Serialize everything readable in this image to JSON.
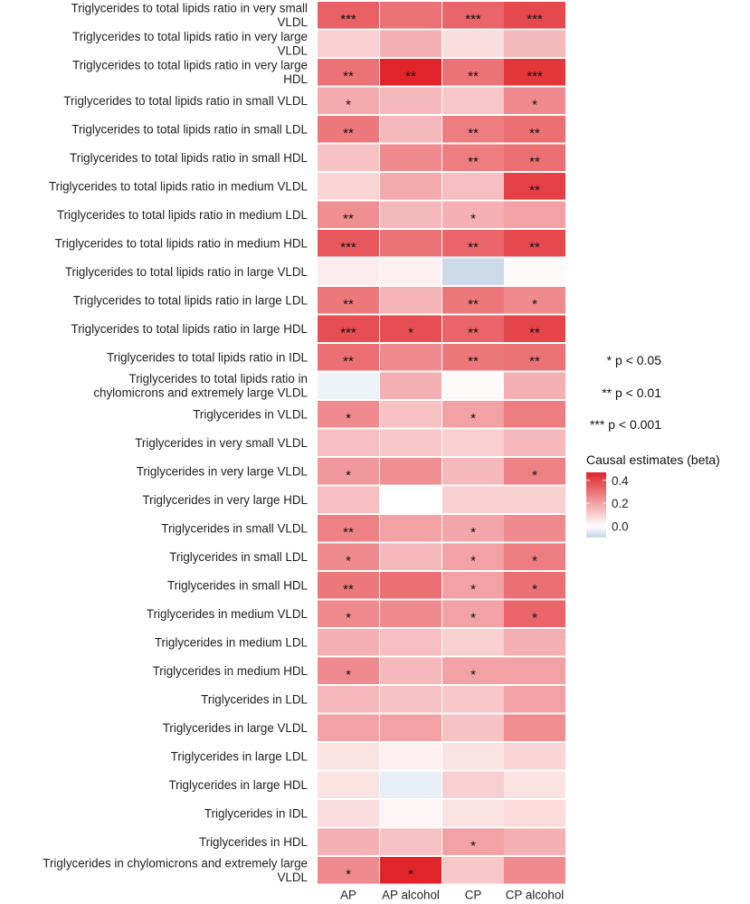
{
  "chart_data": {
    "type": "heatmap",
    "columns": [
      "AP",
      "AP alcohol",
      "CP",
      "CP alcohol"
    ],
    "rows": [
      {
        "label": [
          "Triglycerides to total lipids ratio in very small",
          "VLDL"
        ],
        "values": [
          0.34,
          0.3,
          0.33,
          0.39
        ],
        "stars": [
          "***",
          "",
          "***",
          "***"
        ]
      },
      {
        "label": [
          "Triglycerides to total lipids ratio in very large",
          "VLDL"
        ],
        "values": [
          0.1,
          0.17,
          0.07,
          0.15
        ],
        "stars": [
          "",
          "",
          "",
          ""
        ]
      },
      {
        "label": [
          "Triglycerides to total lipids ratio in very large",
          "HDL"
        ],
        "values": [
          0.3,
          0.47,
          0.3,
          0.43
        ],
        "stars": [
          "**",
          "**",
          "**",
          "***"
        ]
      },
      {
        "label": [
          "Triglycerides to total lipids ratio in small VLDL"
        ],
        "values": [
          0.18,
          0.15,
          0.12,
          0.25
        ],
        "stars": [
          "*",
          "",
          "",
          "*"
        ]
      },
      {
        "label": [
          "Triglycerides to total lipids ratio in small LDL"
        ],
        "values": [
          0.29,
          0.15,
          0.28,
          0.31
        ],
        "stars": [
          "**",
          "",
          "**",
          "**"
        ]
      },
      {
        "label": [
          "Triglycerides to total lipids ratio in small HDL"
        ],
        "values": [
          0.13,
          0.25,
          0.28,
          0.31
        ],
        "stars": [
          "",
          "",
          "**",
          "**"
        ]
      },
      {
        "label": [
          "Triglycerides to total lipids ratio in medium VLDL"
        ],
        "values": [
          0.09,
          0.18,
          0.14,
          0.41
        ],
        "stars": [
          "",
          "",
          "",
          "**"
        ]
      },
      {
        "label": [
          "Triglycerides to total lipids ratio in medium LDL"
        ],
        "values": [
          0.24,
          0.15,
          0.17,
          0.2
        ],
        "stars": [
          "**",
          "",
          "*",
          ""
        ]
      },
      {
        "label": [
          "Triglycerides to total lipids ratio in medium HDL"
        ],
        "values": [
          0.36,
          0.3,
          0.33,
          0.39
        ],
        "stars": [
          "***",
          "",
          "**",
          "**"
        ]
      },
      {
        "label": [
          "Triglycerides to total lipids ratio in large VLDL"
        ],
        "values": [
          0.04,
          0.03,
          -0.09,
          0.01
        ],
        "stars": [
          "",
          "",
          "",
          ""
        ]
      },
      {
        "label": [
          "Triglycerides to total lipids ratio in large LDL"
        ],
        "values": [
          0.29,
          0.16,
          0.29,
          0.25
        ],
        "stars": [
          "**",
          "",
          "**",
          "*"
        ]
      },
      {
        "label": [
          "Triglycerides to total lipids ratio in large HDL"
        ],
        "values": [
          0.38,
          0.38,
          0.33,
          0.4
        ],
        "stars": [
          "***",
          "*",
          "**",
          "**"
        ]
      },
      {
        "label": [
          "Triglycerides to total lipids ratio in IDL"
        ],
        "values": [
          0.31,
          0.25,
          0.29,
          0.3
        ],
        "stars": [
          "**",
          "",
          "**",
          "**"
        ]
      },
      {
        "label": [
          "Triglycerides to total lipids ratio in",
          "chylomicrons and extremely large VLDL"
        ],
        "values": [
          -0.03,
          0.17,
          0.01,
          0.17
        ],
        "stars": [
          "",
          "",
          "",
          ""
        ]
      },
      {
        "label": [
          "Triglycerides in VLDL"
        ],
        "values": [
          0.25,
          0.13,
          0.2,
          0.28
        ],
        "stars": [
          "*",
          "",
          "*",
          ""
        ]
      },
      {
        "label": [
          "Triglycerides in very small VLDL"
        ],
        "values": [
          0.14,
          0.12,
          0.1,
          0.15
        ],
        "stars": [
          "",
          "",
          "",
          ""
        ]
      },
      {
        "label": [
          "Triglycerides in very large VLDL"
        ],
        "values": [
          0.22,
          0.24,
          0.15,
          0.27
        ],
        "stars": [
          "*",
          "",
          "",
          "*"
        ]
      },
      {
        "label": [
          "Triglycerides in very large HDL"
        ],
        "values": [
          0.14,
          0.0,
          0.1,
          0.1
        ],
        "stars": [
          "",
          "",
          "",
          ""
        ]
      },
      {
        "label": [
          "Triglycerides in small VLDL"
        ],
        "values": [
          0.27,
          0.2,
          0.19,
          0.25
        ],
        "stars": [
          "**",
          "",
          "*",
          ""
        ]
      },
      {
        "label": [
          "Triglycerides in small LDL"
        ],
        "values": [
          0.25,
          0.15,
          0.2,
          0.28
        ],
        "stars": [
          "*",
          "",
          "*",
          "*"
        ]
      },
      {
        "label": [
          "Triglycerides in small HDL"
        ],
        "values": [
          0.29,
          0.31,
          0.2,
          0.31
        ],
        "stars": [
          "**",
          "",
          "*",
          "*"
        ]
      },
      {
        "label": [
          "Triglycerides in medium VLDL"
        ],
        "values": [
          0.25,
          0.25,
          0.2,
          0.33
        ],
        "stars": [
          "*",
          "",
          "*",
          "*"
        ]
      },
      {
        "label": [
          "Triglycerides in medium LDL"
        ],
        "values": [
          0.17,
          0.14,
          0.1,
          0.17
        ],
        "stars": [
          "",
          "",
          "",
          ""
        ]
      },
      {
        "label": [
          "Triglycerides in medium HDL"
        ],
        "values": [
          0.25,
          0.15,
          0.2,
          0.2
        ],
        "stars": [
          "*",
          "",
          "*",
          ""
        ]
      },
      {
        "label": [
          "Triglycerides in LDL"
        ],
        "values": [
          0.15,
          0.13,
          0.12,
          0.2
        ],
        "stars": [
          "",
          "",
          "",
          ""
        ]
      },
      {
        "label": [
          "Triglycerides in large VLDL"
        ],
        "values": [
          0.2,
          0.2,
          0.13,
          0.24
        ],
        "stars": [
          "",
          "",
          "",
          ""
        ]
      },
      {
        "label": [
          "Triglycerides in large LDL"
        ],
        "values": [
          0.06,
          0.03,
          0.06,
          0.09
        ],
        "stars": [
          "",
          "",
          "",
          ""
        ]
      },
      {
        "label": [
          "Triglycerides in large HDL"
        ],
        "values": [
          0.06,
          -0.04,
          0.1,
          0.06
        ],
        "stars": [
          "",
          "",
          "",
          ""
        ]
      },
      {
        "label": [
          "Triglycerides in IDL"
        ],
        "values": [
          0.07,
          0.02,
          0.06,
          0.08
        ],
        "stars": [
          "",
          "",
          "",
          ""
        ]
      },
      {
        "label": [
          "Triglycerides in HDL"
        ],
        "values": [
          0.17,
          0.13,
          0.2,
          0.17
        ],
        "stars": [
          "",
          "",
          "*",
          ""
        ]
      },
      {
        "label": [
          "Triglycerides in chylomicrons and extremely large",
          "VLDL"
        ],
        "values": [
          0.25,
          0.47,
          0.12,
          0.25
        ],
        "stars": [
          "*",
          "*",
          "",
          ""
        ]
      }
    ],
    "significance_notes": [
      "* p < 0.05",
      "** p < 0.01",
      "*** p < 0.001"
    ],
    "legend": {
      "title": "Causal estimates (beta)",
      "ticks": [
        "0.4",
        "0.2",
        "0.0"
      ],
      "tick_values": [
        0.4,
        0.2,
        0.0
      ],
      "range": [
        -0.1,
        0.47
      ],
      "low_color": "#c6d6e8",
      "mid_color": "#ffffff",
      "high_color": "#e0242a",
      "position": "right"
    }
  }
}
